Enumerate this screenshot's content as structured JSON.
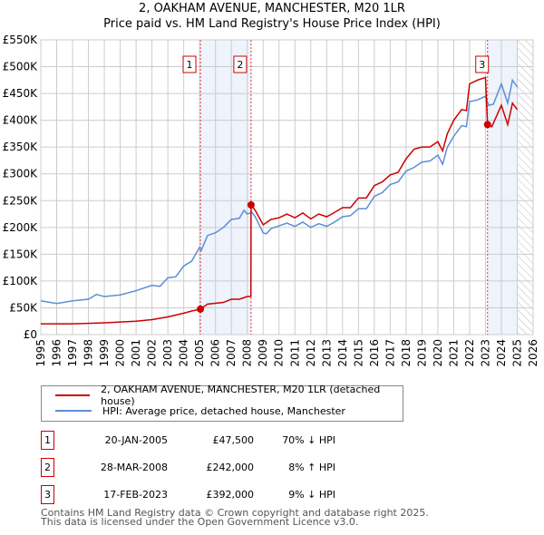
{
  "chart_data": {
    "type": "line",
    "title": "2, OAKHAM AVENUE, MANCHESTER, M20 1LR",
    "subtitle": "Price paid vs. HM Land Registry's House Price Index (HPI)",
    "xlim": [
      1995,
      2026
    ],
    "ylim": [
      0,
      550000
    ],
    "x_ticks": [
      "1995",
      "1996",
      "1997",
      "1998",
      "1999",
      "2000",
      "2001",
      "2002",
      "2003",
      "2004",
      "2005",
      "2006",
      "2007",
      "2008",
      "2009",
      "2010",
      "2011",
      "2012",
      "2013",
      "2014",
      "2015",
      "2016",
      "2017",
      "2018",
      "2019",
      "2020",
      "2021",
      "2022",
      "2023",
      "2024",
      "2025",
      "2026"
    ],
    "y_ticks": [
      {
        "v": 0,
        "l": "£0"
      },
      {
        "v": 50000,
        "l": "£50K"
      },
      {
        "v": 100000,
        "l": "£100K"
      },
      {
        "v": 150000,
        "l": "£150K"
      },
      {
        "v": 200000,
        "l": "£200K"
      },
      {
        "v": 250000,
        "l": "£250K"
      },
      {
        "v": 300000,
        "l": "£300K"
      },
      {
        "v": 350000,
        "l": "£350K"
      },
      {
        "v": 400000,
        "l": "£400K"
      },
      {
        "v": 450000,
        "l": "£450K"
      },
      {
        "v": 500000,
        "l": "£500K"
      },
      {
        "v": 550000,
        "l": "£550K"
      }
    ],
    "grid": true,
    "shaded": [
      [
        2005.05,
        2008.24
      ],
      [
        2023.13,
        2025.0
      ]
    ],
    "hatched_from": 2025.0,
    "series": [
      {
        "name": "2, OAKHAM AVENUE, MANCHESTER, M20 1LR (detached house)",
        "color": "#cc0000",
        "x": [
          1995,
          1997,
          1999,
          2001,
          2002,
          2003,
          2004,
          2004.5,
          2005.05,
          2005.5,
          2006.5,
          2007,
          2007.5,
          2008.0,
          2008.23,
          2008.24,
          2008.5,
          2009,
          2009.5,
          2010,
          2010.5,
          2011,
          2011.5,
          2012,
          2012.5,
          2013,
          2013.5,
          2014,
          2014.5,
          2015,
          2015.5,
          2016,
          2016.5,
          2017,
          2017.5,
          2018,
          2018.5,
          2019,
          2019.5,
          2020,
          2020.3,
          2020.6,
          2021,
          2021.5,
          2021.8,
          2022,
          2022.5,
          2023.0,
          2023.13,
          2023.4,
          2024,
          2024.4,
          2024.7,
          2025
        ],
        "y": [
          20000,
          20000,
          22000,
          25000,
          28000,
          33000,
          40000,
          44000,
          47500,
          57000,
          60000,
          66000,
          66000,
          71000,
          71000,
          242000,
          232000,
          205000,
          215000,
          218000,
          225000,
          218000,
          227000,
          216000,
          225000,
          220000,
          228000,
          237000,
          237000,
          255000,
          255000,
          278000,
          285000,
          298000,
          303000,
          328000,
          346000,
          350000,
          350000,
          360000,
          343000,
          375000,
          400000,
          420000,
          418000,
          468000,
          475000,
          480000,
          392000,
          388000,
          428000,
          392000,
          432000,
          420000
        ]
      },
      {
        "name": "HPI: Average price, detached house, Manchester",
        "color": "#5b8fd4",
        "x": [
          1995,
          1996,
          1997,
          1998,
          1998.5,
          1999,
          2000,
          2001,
          2002,
          2002.5,
          2003,
          2003.5,
          2004,
          2004.5,
          2005,
          2005.1,
          2005.5,
          2006,
          2006.5,
          2007,
          2007.5,
          2007.8,
          2008,
          2008.3,
          2008.5,
          2009,
          2009.2,
          2009.5,
          2010,
          2010.5,
          2011,
          2011.5,
          2012,
          2012.5,
          2013,
          2013.5,
          2014,
          2014.5,
          2015,
          2015.5,
          2016,
          2016.5,
          2017,
          2017.5,
          2018,
          2018.5,
          2019,
          2019.5,
          2020,
          2020.3,
          2020.6,
          2021,
          2021.5,
          2021.8,
          2022,
          2022.5,
          2023,
          2023.2,
          2023.5,
          2024,
          2024.4,
          2024.7,
          2025
        ],
        "y": [
          63000,
          58000,
          63000,
          66000,
          75000,
          71000,
          74000,
          82000,
          92000,
          90000,
          106000,
          108000,
          128000,
          137000,
          163000,
          157000,
          185000,
          190000,
          200000,
          215000,
          217000,
          232000,
          225000,
          228000,
          220000,
          190000,
          188000,
          198000,
          203000,
          208000,
          202000,
          210000,
          200000,
          207000,
          202000,
          210000,
          220000,
          222000,
          235000,
          235000,
          258000,
          265000,
          280000,
          285000,
          305000,
          312000,
          322000,
          324000,
          335000,
          318000,
          350000,
          370000,
          390000,
          388000,
          435000,
          438000,
          445000,
          428000,
          430000,
          468000,
          432000,
          475000,
          462000
        ]
      }
    ],
    "sales": [
      {
        "n": "1",
        "x": 2005.05,
        "y": 47500
      },
      {
        "n": "2",
        "x": 2008.24,
        "y": 242000
      },
      {
        "n": "3",
        "x": 2023.13,
        "y": 392000
      }
    ]
  },
  "table": [
    {
      "n": "1",
      "date": "20-JAN-2005",
      "price": "£47,500",
      "hpi": "70% ↓ HPI"
    },
    {
      "n": "2",
      "date": "28-MAR-2008",
      "price": "£242,000",
      "hpi": "8% ↑ HPI"
    },
    {
      "n": "3",
      "date": "17-FEB-2023",
      "price": "£392,000",
      "hpi": "9% ↓ HPI"
    }
  ],
  "footer": [
    "Contains HM Land Registry data © Crown copyright and database right 2025.",
    "This data is licensed under the Open Government Licence v3.0."
  ]
}
